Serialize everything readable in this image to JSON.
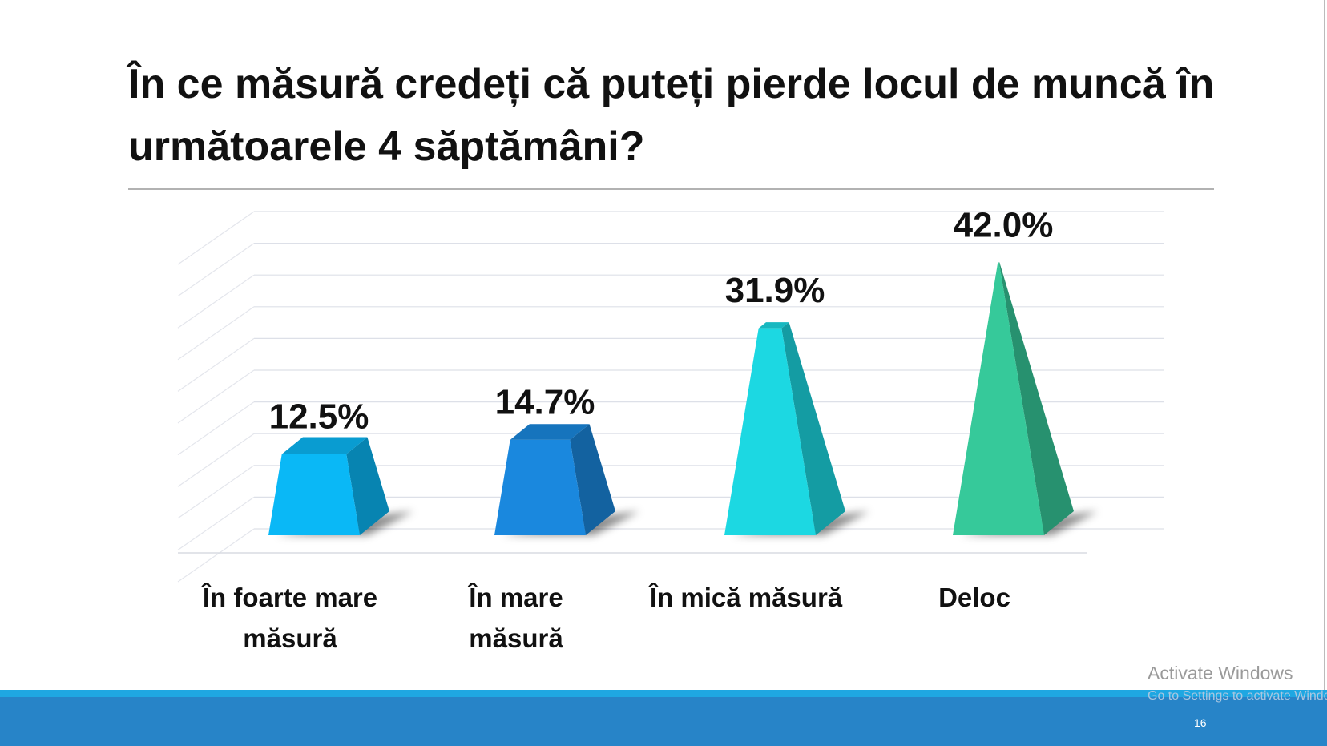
{
  "chart_data": {
    "type": "pyramid",
    "title": "În ce măsură credeți că puteți pierde locul de muncă în următoarele 4 săptămâni?",
    "categories": [
      "În foarte mare măsură",
      "În mare măsură",
      "În mică măsură",
      "Deloc"
    ],
    "values": [
      12.5,
      14.7,
      31.9,
      42.0
    ],
    "value_labels": [
      "12.5%",
      "14.7%",
      "31.9%",
      "42.0%"
    ],
    "colors": [
      "#0ab8f6",
      "#1a88de",
      "#1cd8e2",
      "#36c99a"
    ]
  },
  "watermark": {
    "title": "Activate Windows",
    "subtitle": "Go to Settings to activate Windows."
  },
  "slide_number": "16"
}
